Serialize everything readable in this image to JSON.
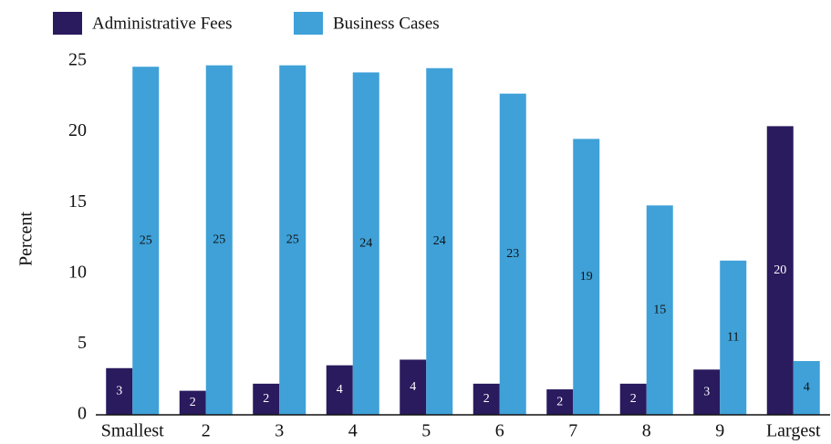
{
  "chart_data": {
    "type": "bar",
    "y_label": "Percent",
    "categories": [
      "Smallest",
      "2",
      "3",
      "4",
      "5",
      "6",
      "7",
      "8",
      "9",
      "Largest"
    ],
    "series": [
      {
        "name": "Administrative Fees",
        "color": "#2a1a5e",
        "values": [
          3.3,
          1.7,
          2.2,
          3.5,
          3.9,
          2.2,
          1.8,
          2.2,
          3.2,
          20.4
        ],
        "value_labels": [
          "3",
          "2",
          "2",
          "4",
          "4",
          "2",
          "2",
          "2",
          "3",
          "20"
        ]
      },
      {
        "name": "Business Cases",
        "color": "#3fa1d8",
        "values": [
          24.6,
          24.7,
          24.7,
          24.2,
          24.5,
          22.7,
          19.5,
          14.8,
          10.9,
          3.8
        ],
        "value_labels": [
          "25",
          "25",
          "25",
          "24",
          "24",
          "23",
          "19",
          "15",
          "11",
          "4"
        ]
      }
    ],
    "ylim": [
      0,
      25
    ],
    "yticks": [
      0,
      5,
      10,
      15,
      20,
      25
    ],
    "legend": "top-left"
  }
}
